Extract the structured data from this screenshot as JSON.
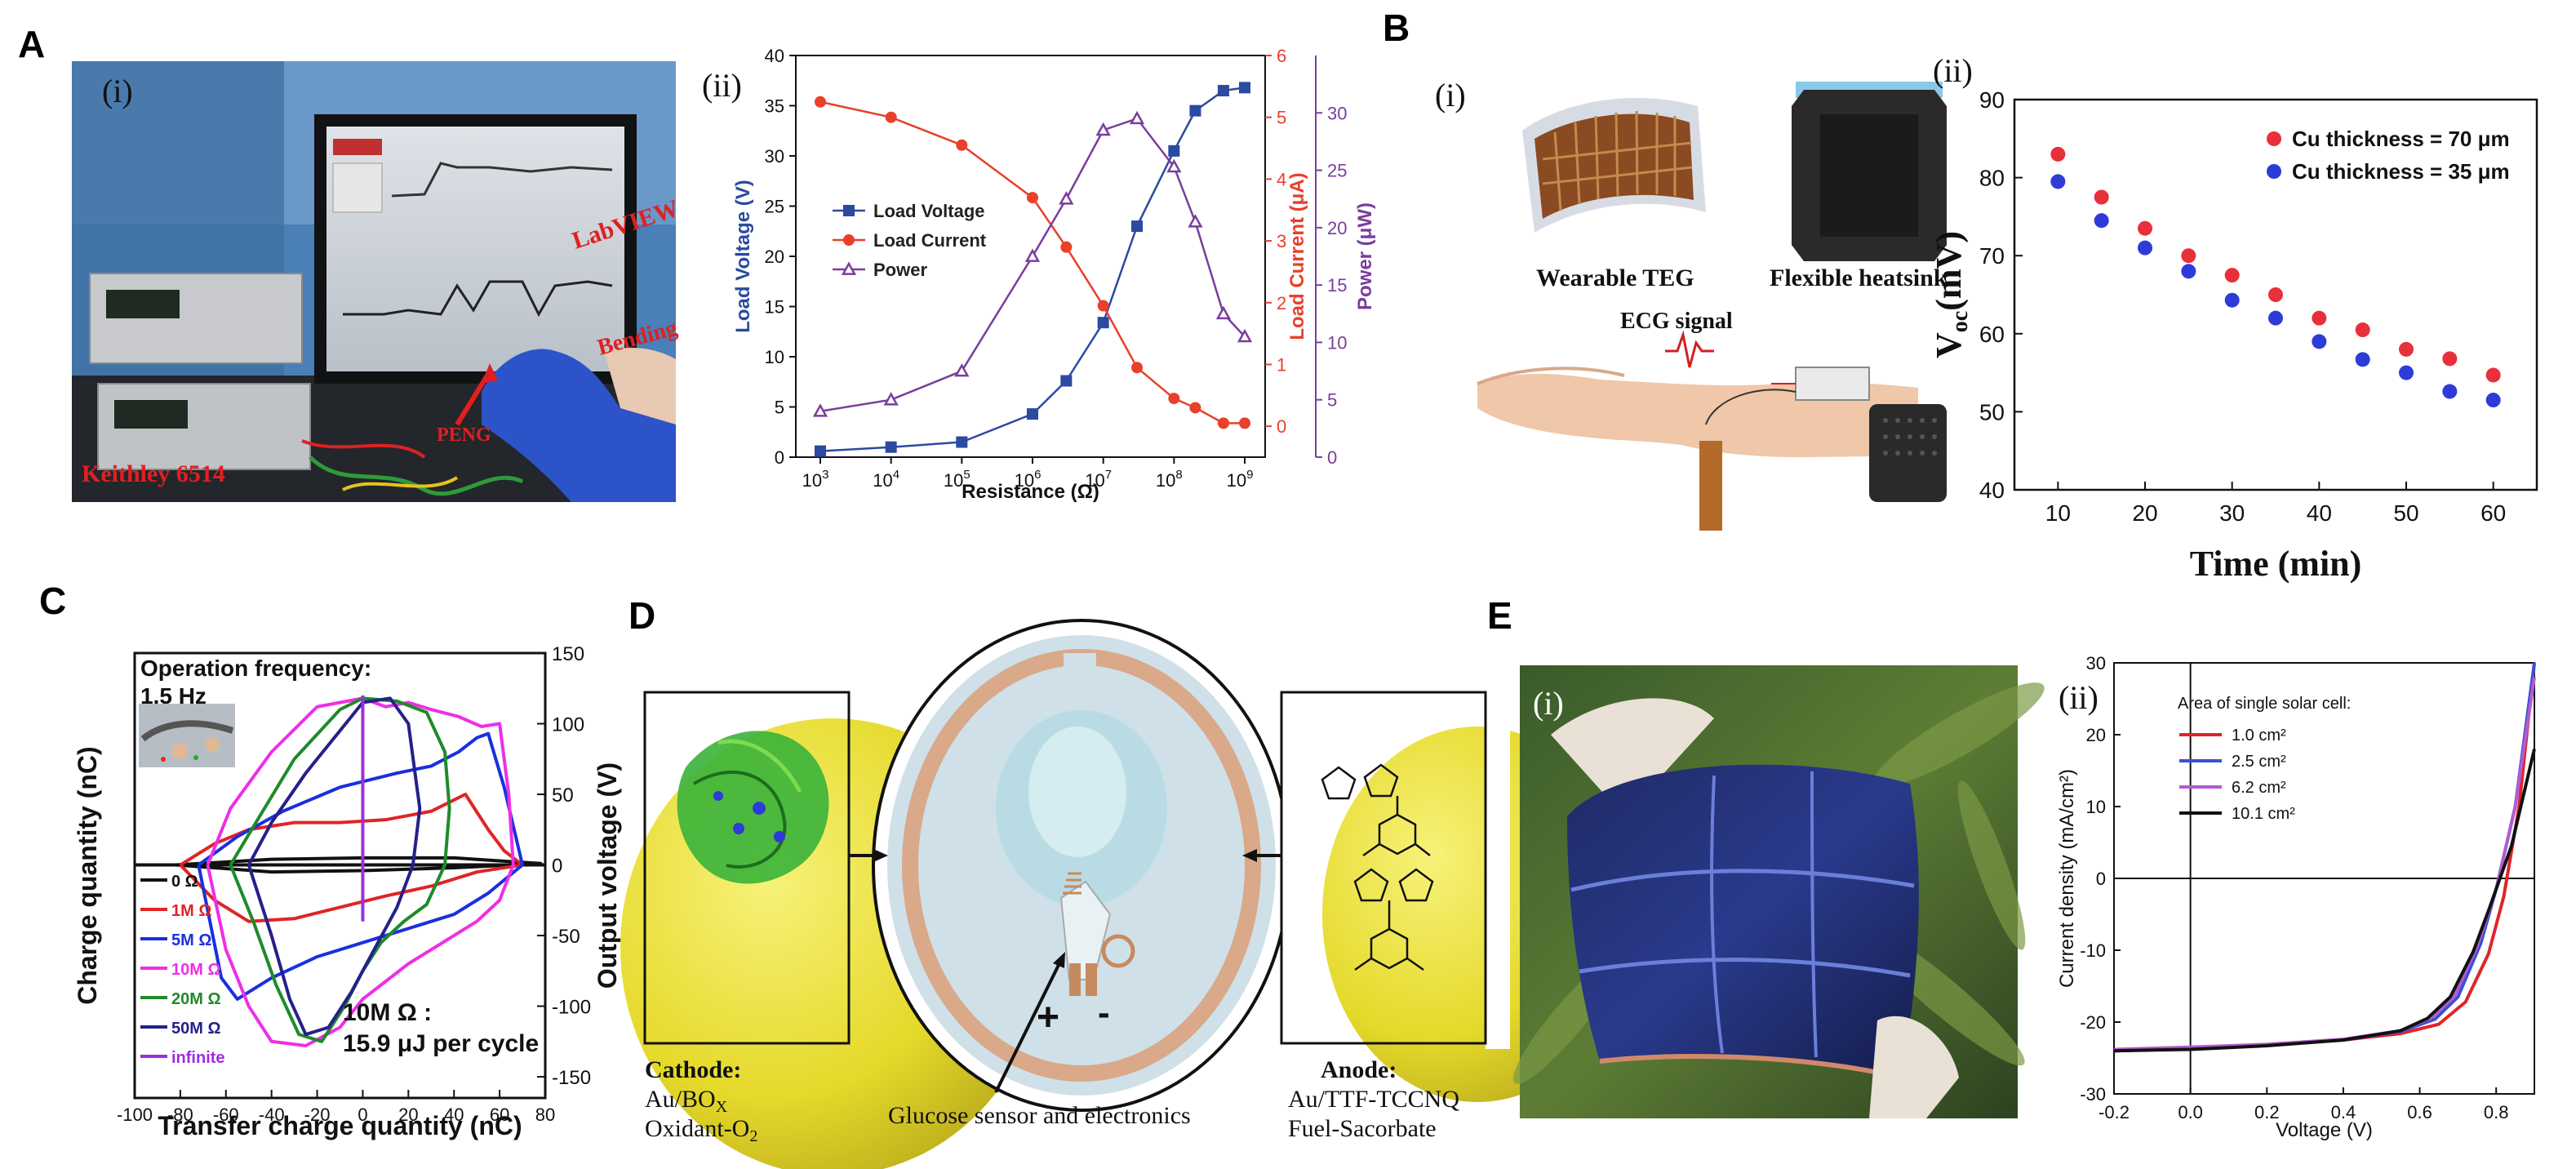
{
  "panel_letters": [
    "A",
    "B",
    "C",
    "D",
    "E"
  ],
  "sublabels": {
    "i": "(i)",
    "ii": "(ii)"
  },
  "photoA": {
    "labviewLabel": "LabVIEW",
    "bendingLabel": "Bending",
    "pengLabel": "PENG",
    "keithleyLabel": "Keithley 6514"
  },
  "photoB": {
    "wearableTEG": "Wearable TEG",
    "flexibleHeatsink": "Flexible heatsink",
    "ecgSignal": "ECG signal"
  },
  "diagramD": {
    "cathodeTitle": "Cathode:",
    "cathodeLine1": "Au/BO",
    "cathodeLine1Sub": "X",
    "cathodeLine2": "Oxidant-O",
    "cathodeLine2Sub": "2",
    "anodeTitle": "Anode:",
    "anodeLine1": "Au/TTF-TCCNQ",
    "anodeLine2": "Fuel-Sacorbate",
    "centerLabel": "Glucose sensor and electronics",
    "plus": "+",
    "minus": "-"
  },
  "chart_data": [
    {
      "id": "A-ii",
      "type": "line",
      "x": [
        1000,
        10000,
        100000,
        1000000,
        3000000,
        10000000,
        30000000,
        100000000,
        200000000,
        500000000,
        1000000000
      ],
      "xlabel": "Resistance (Ω)",
      "xscale": "log",
      "xticks": [
        {
          "base": "10",
          "exp": "3"
        },
        {
          "base": "10",
          "exp": "4"
        },
        {
          "base": "10",
          "exp": "5"
        },
        {
          "base": "10",
          "exp": "6"
        },
        {
          "base": "10",
          "exp": "7"
        },
        {
          "base": "10",
          "exp": "8"
        },
        {
          "base": "10",
          "exp": "9"
        }
      ],
      "axes": {
        "left": {
          "label": "Load Voltage (V)",
          "lim": [
            0,
            40
          ],
          "ticks": [
            "0",
            "5",
            "10",
            "15",
            "20",
            "25",
            "30",
            "35",
            "40"
          ],
          "color": "#2b4aa0"
        },
        "right1": {
          "label": "Load Current (μA)",
          "lim": [
            -0.5,
            6
          ],
          "ticks": [
            "0",
            "1",
            "2",
            "3",
            "4",
            "5",
            "6"
          ],
          "color": "#e8402a"
        },
        "right2": {
          "label": "Power (μW)",
          "lim": [
            0,
            35
          ],
          "ticks": [
            "0",
            "5",
            "10",
            "15",
            "20",
            "25",
            "30"
          ],
          "color": "#7a3d9c"
        }
      },
      "series": [
        {
          "name": "Load Voltage",
          "axis": "left",
          "color": "#2b4aa0",
          "marker": "square",
          "values": [
            0.6,
            1.0,
            1.5,
            4.3,
            7.6,
            13.4,
            23,
            30.5,
            34.5,
            36.5,
            36.8
          ]
        },
        {
          "name": "Load Current",
          "axis": "right1",
          "color": "#e8402a",
          "marker": "circle",
          "values": [
            5.25,
            5.0,
            4.55,
            3.7,
            2.9,
            1.95,
            0.95,
            0.45,
            0.3,
            0.05,
            0.05
          ]
        },
        {
          "name": "Power",
          "axis": "right2",
          "color": "#7a3d9c",
          "marker": "tri",
          "values": [
            4.0,
            5.0,
            7.5,
            17.5,
            22.5,
            28.5,
            29.5,
            25.3,
            20.5,
            12.5,
            10.5
          ]
        }
      ],
      "legend": "center-left"
    },
    {
      "id": "B-ii",
      "type": "scatter",
      "xlabel": "Time (min)",
      "ylabel": "V",
      "ylabelSub": "oc",
      "ylabelUnit": "(mV)",
      "xlim": [
        5,
        65
      ],
      "ylim": [
        40,
        90
      ],
      "xticks": [
        "10",
        "20",
        "30",
        "40",
        "50",
        "60"
      ],
      "yticks": [
        "40",
        "50",
        "60",
        "70",
        "80",
        "90"
      ],
      "series": [
        {
          "name": "Cu thickness = 70 μm",
          "color": "#e8303a",
          "x": [
            10,
            15,
            20,
            25,
            30,
            35,
            40,
            45,
            50,
            55,
            60
          ],
          "y": [
            83,
            77.5,
            73.5,
            70,
            67.5,
            65,
            62,
            60.5,
            58,
            56.8,
            54.7
          ]
        },
        {
          "name": "Cu thickness = 35 μm",
          "color": "#2d3bd8",
          "x": [
            10,
            15,
            20,
            25,
            30,
            35,
            40,
            45,
            50,
            55,
            60
          ],
          "y": [
            79.5,
            74.5,
            71,
            68,
            64.3,
            62,
            59,
            56.7,
            55,
            52.6,
            51.5
          ]
        }
      ],
      "legend": "top-right"
    },
    {
      "id": "C",
      "type": "line",
      "xlabel": "Transfer charge quantity (nC)",
      "ylabel": "Charge quantity (nC)",
      "y2label": "Output voltage (V)",
      "xlim": [
        -100,
        80
      ],
      "y2lim": [
        -165,
        150
      ],
      "xticks": [
        "-100",
        "-80",
        "-60",
        "-40",
        "-20",
        "0",
        "20",
        "40",
        "60",
        "80"
      ],
      "y2ticks": [
        "-150",
        "-100",
        "-50",
        "0",
        "50",
        "100",
        "150"
      ],
      "annotationTitle": "Operation frequency:",
      "annotationFreq": "1.5 Hz",
      "annotationEnergy1": "10M Ω :",
      "annotationEnergy2": "15.9 μJ per cycle",
      "series": [
        {
          "name": "0 Ω",
          "color": "#111111",
          "x": [
            -82,
            -40,
            0,
            40,
            78,
            40,
            0,
            -40,
            -82
          ],
          "y": [
            0,
            4,
            5,
            5,
            1,
            -2,
            -4,
            -5,
            0
          ]
        },
        {
          "name": "1M Ω",
          "color": "#e02424",
          "x": [
            -80,
            -65,
            -50,
            -30,
            -10,
            10,
            30,
            45,
            55,
            62,
            70,
            50,
            30,
            10,
            -10,
            -30,
            -50,
            -65,
            -80
          ],
          "y": [
            0,
            15,
            25,
            30,
            30,
            32,
            38,
            50,
            25,
            10,
            0,
            -5,
            -15,
            -22,
            -30,
            -38,
            -40,
            -25,
            0
          ]
        },
        {
          "name": "5M Ω",
          "color": "#1a2fe0",
          "x": [
            -72,
            -55,
            -35,
            -10,
            15,
            30,
            42,
            50,
            55,
            62,
            70,
            55,
            40,
            20,
            0,
            -20,
            -40,
            -55,
            -62,
            -72
          ],
          "y": [
            0,
            20,
            38,
            55,
            65,
            70,
            80,
            90,
            93,
            55,
            0,
            -20,
            -35,
            -45,
            -55,
            -65,
            -80,
            -95,
            -80,
            0
          ]
        },
        {
          "name": "10M Ω",
          "color": "#ee2fe6",
          "x": [
            -68,
            -58,
            -40,
            -20,
            0,
            10,
            20,
            30,
            42,
            52,
            60,
            64,
            66,
            60,
            50,
            35,
            20,
            0,
            -10,
            -25,
            -40,
            -50,
            -60,
            -68
          ],
          "y": [
            0,
            40,
            80,
            112,
            118,
            112,
            115,
            110,
            105,
            98,
            100,
            50,
            0,
            -25,
            -40,
            -55,
            -70,
            -95,
            -115,
            -128,
            -125,
            -100,
            -60,
            0
          ]
        },
        {
          "name": "20M Ω",
          "color": "#1f8a2a",
          "x": [
            -58,
            -45,
            -30,
            -10,
            0,
            15,
            28,
            36,
            38,
            36,
            28,
            18,
            8,
            0,
            -8,
            -18,
            -28,
            -38,
            -48,
            -58
          ],
          "y": [
            0,
            35,
            75,
            110,
            118,
            116,
            108,
            80,
            40,
            0,
            -28,
            -40,
            -55,
            -75,
            -100,
            -125,
            -120,
            -85,
            -40,
            0
          ]
        },
        {
          "name": "50M Ω",
          "color": "#25208a",
          "x": [
            -50,
            -40,
            -25,
            -10,
            0,
            12,
            20,
            25,
            22,
            15,
            5,
            -5,
            -15,
            -25,
            -32,
            -40,
            -50
          ],
          "y": [
            0,
            30,
            65,
            95,
            115,
            118,
            100,
            40,
            0,
            -30,
            -60,
            -90,
            -115,
            -120,
            -95,
            -50,
            0
          ]
        },
        {
          "name": "infinite",
          "color": "#9c2fdc",
          "x": [
            0,
            0
          ],
          "y": [
            -40,
            120
          ]
        }
      ]
    },
    {
      "id": "E-ii",
      "type": "line",
      "xlabel": "Voltage (V)",
      "ylabel": "Current density (mA/cm²)",
      "xlim": [
        -0.2,
        0.9
      ],
      "ylim": [
        -30,
        30
      ],
      "xticks": [
        "-0.2",
        "0.0",
        "0.2",
        "0.4",
        "0.6",
        "0.8"
      ],
      "yticks": [
        "-30",
        "-20",
        "-10",
        "0",
        "10",
        "20",
        "30"
      ],
      "legendTitle": "Area of single solar cell:",
      "series": [
        {
          "name": "1.0 cm²",
          "color": "#e0242a",
          "x": [
            -0.2,
            0,
            0.2,
            0.4,
            0.55,
            0.65,
            0.72,
            0.78,
            0.82,
            0.86,
            0.9
          ],
          "y": [
            -24,
            -23.7,
            -23.2,
            -22.5,
            -21.6,
            -20.3,
            -17.2,
            -10.5,
            -2.5,
            10,
            30
          ]
        },
        {
          "name": "2.5 cm²",
          "color": "#3b4fd6",
          "x": [
            -0.2,
            0,
            0.2,
            0.4,
            0.55,
            0.64,
            0.7,
            0.76,
            0.8,
            0.85,
            0.9
          ],
          "y": [
            -24,
            -23.7,
            -23.2,
            -22.5,
            -21.3,
            -19.6,
            -16.5,
            -9,
            -1.5,
            10,
            30
          ]
        },
        {
          "name": "6.2 cm²",
          "color": "#b35bd0",
          "x": [
            -0.2,
            0,
            0.2,
            0.4,
            0.55,
            0.63,
            0.69,
            0.75,
            0.8,
            0.85,
            0.9
          ],
          "y": [
            -23.8,
            -23.5,
            -23.1,
            -22.4,
            -21.2,
            -19.4,
            -16.5,
            -9.5,
            -1.5,
            10,
            28
          ]
        },
        {
          "name": "10.1 cm²",
          "color": "#111111",
          "x": [
            -0.2,
            0,
            0.2,
            0.4,
            0.55,
            0.62,
            0.68,
            0.74,
            0.78,
            0.84,
            0.9
          ],
          "y": [
            -24,
            -23.8,
            -23.3,
            -22.5,
            -21.2,
            -19.5,
            -16.5,
            -10.2,
            -4.5,
            4.5,
            18
          ]
        }
      ],
      "legend": "top-left"
    }
  ]
}
